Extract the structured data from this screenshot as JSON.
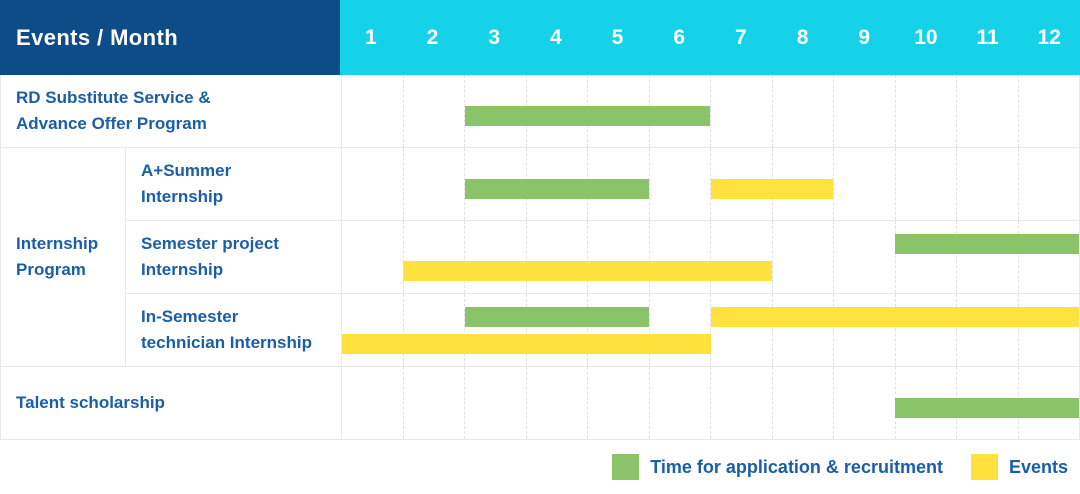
{
  "colors": {
    "header_bg": "#0e4c87",
    "months_bg": "#15d2e8",
    "label_text": "#1b5ea6",
    "green": "#8bc468",
    "yellow": "#ffe23e"
  },
  "header": {
    "title": "Events / Month",
    "months": [
      "1",
      "2",
      "3",
      "4",
      "5",
      "6",
      "7",
      "8",
      "9",
      "10",
      "11",
      "12"
    ]
  },
  "legend": [
    {
      "color_key": "green",
      "label": "Time for application & recruitment"
    },
    {
      "color_key": "yellow",
      "label": "Events"
    }
  ],
  "chart_data": {
    "type": "gantt",
    "unit": "month",
    "axis_min": 1,
    "axis_max": 12,
    "groups": [
      {
        "label_lines": [
          "Internship",
          "Program"
        ],
        "row_start": 2,
        "row_end": 4
      }
    ],
    "rows": [
      {
        "label_lines": [
          "RD Substitute Service &",
          "Advance Offer Program"
        ],
        "bars": [
          {
            "color": "green",
            "start": 3,
            "end": 6,
            "lane": "single"
          }
        ]
      },
      {
        "label_lines": [
          "A+Summer",
          "Internship"
        ],
        "bars": [
          {
            "color": "green",
            "start": 3,
            "end": 5,
            "lane": "single"
          },
          {
            "color": "yellow",
            "start": 7,
            "end": 8,
            "lane": "single"
          }
        ]
      },
      {
        "label_lines": [
          "Semester project",
          "Internship"
        ],
        "bars": [
          {
            "color": "green",
            "start": 10,
            "end": 12,
            "lane": "top"
          },
          {
            "color": "yellow",
            "start": 2,
            "end": 7,
            "lane": "bottom"
          }
        ]
      },
      {
        "label_lines": [
          "In-Semester",
          "technician Internship"
        ],
        "bars": [
          {
            "color": "green",
            "start": 3,
            "end": 5,
            "lane": "top"
          },
          {
            "color": "yellow",
            "start": 7,
            "end": 12,
            "lane": "top"
          },
          {
            "color": "yellow",
            "start": 1,
            "end": 6,
            "lane": "bottom"
          }
        ]
      },
      {
        "label_lines": [
          "Talent scholarship"
        ],
        "bars": [
          {
            "color": "green",
            "start": 10,
            "end": 12,
            "lane": "single"
          }
        ]
      }
    ]
  }
}
